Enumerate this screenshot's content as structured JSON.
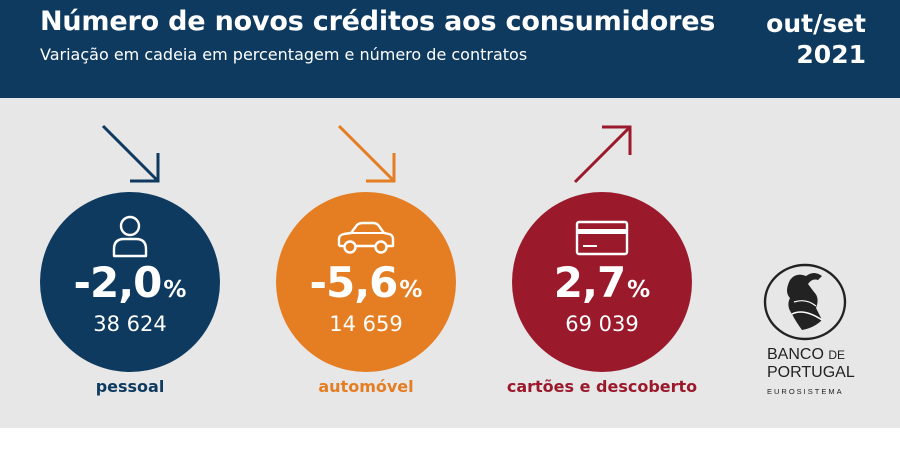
{
  "header": {
    "title": "Número de novos créditos aos consumidores",
    "subtitle": "Variação em cadeia em percentagem e número de contratos",
    "period_line1": "out/set",
    "period_line2": "2021"
  },
  "items": [
    {
      "key": "pessoal",
      "value": "-2,0",
      "unit": "%",
      "count": "38 624",
      "label": "pessoal",
      "trend": "down",
      "color": "#0e3a5f",
      "icon": "person-icon"
    },
    {
      "key": "automovel",
      "value": "-5,6",
      "unit": "%",
      "count": "14 659",
      "label": "automóvel",
      "trend": "down",
      "color": "#e57e22",
      "icon": "car-icon"
    },
    {
      "key": "cartoes",
      "value": "2,7",
      "unit": "%",
      "count": "69 039",
      "label": "cartões e descoberto",
      "trend": "up",
      "color": "#9a1a2c",
      "icon": "credit-card-icon"
    }
  ],
  "logo": {
    "line1_a": "BANCO",
    "line1_b": "DE",
    "line2": "PORTUGAL",
    "line3": "EUROSISTEMA"
  }
}
